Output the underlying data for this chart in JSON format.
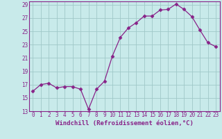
{
  "x": [
    0,
    1,
    2,
    3,
    4,
    5,
    6,
    7,
    8,
    9,
    10,
    11,
    12,
    13,
    14,
    15,
    16,
    17,
    18,
    19,
    20,
    21,
    22,
    23
  ],
  "y": [
    16.0,
    17.0,
    17.2,
    16.5,
    16.7,
    16.7,
    16.3,
    13.3,
    16.3,
    17.5,
    21.3,
    24.1,
    25.5,
    26.3,
    27.3,
    27.3,
    28.2,
    28.3,
    29.1,
    28.3,
    27.2,
    25.2,
    23.3,
    22.7
  ],
  "line_color": "#882288",
  "marker": "D",
  "marker_size": 2.5,
  "bg_color": "#c8eaea",
  "grid_color": "#a0c8c8",
  "xlabel": "Windchill (Refroidissement éolien,°C)",
  "ylim": [
    13,
    29.5
  ],
  "yticks": [
    13,
    15,
    17,
    19,
    21,
    23,
    25,
    27,
    29
  ],
  "xlim": [
    -0.5,
    23.5
  ],
  "xticks": [
    0,
    1,
    2,
    3,
    4,
    5,
    6,
    7,
    8,
    9,
    10,
    11,
    12,
    13,
    14,
    15,
    16,
    17,
    18,
    19,
    20,
    21,
    22,
    23
  ],
  "tick_fontsize": 5.5,
  "xlabel_fontsize": 6.5
}
